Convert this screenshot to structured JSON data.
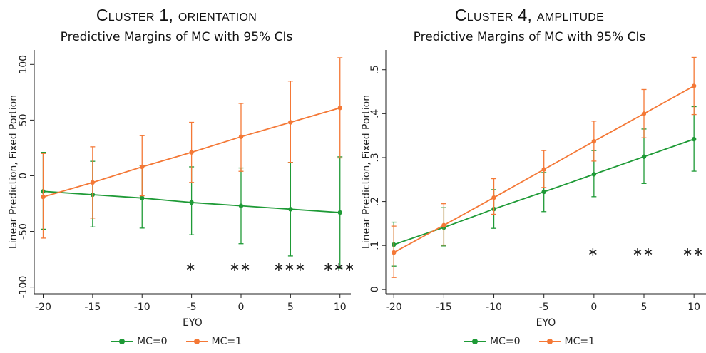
{
  "chart_data": [
    {
      "type": "line",
      "title": "Cluster 1, orientation",
      "subtitle": "Predictive Margins of MC with 95% CIs",
      "xlabel": "EYO",
      "ylabel": "Linear Prediction, Fixed Portion",
      "x": [
        -20,
        -15,
        -10,
        -5,
        0,
        5,
        10
      ],
      "xlim": [
        -20.9,
        11.1
      ],
      "ylim": [
        -106,
        113
      ],
      "xticks": [
        "-20",
        "-15",
        "-10",
        "-5",
        "0",
        "5",
        "10"
      ],
      "yticks": [
        {
          "value": -100,
          "label": "-100"
        },
        {
          "value": -50,
          "label": "-50"
        },
        {
          "value": 0,
          "label": "0"
        },
        {
          "value": 50,
          "label": "50"
        },
        {
          "value": 100,
          "label": "100"
        }
      ],
      "grid": false,
      "legend_position": "bottom",
      "series": [
        {
          "name": "MC=0",
          "color": "#1e9a36",
          "values": [
            -14,
            -17,
            -20,
            -24,
            -27,
            -30,
            -33
          ],
          "lower": [
            -48,
            -46,
            -47,
            -53,
            -61,
            -72,
            -83
          ],
          "upper": [
            21,
            13,
            9,
            8,
            7,
            12,
            17
          ]
        },
        {
          "name": "MC=1",
          "color": "#f47836",
          "values": [
            -19,
            -6,
            8,
            21,
            35,
            48,
            61
          ],
          "lower": [
            -56,
            -38,
            -18,
            -6,
            4,
            12,
            16
          ],
          "upper": [
            20,
            26,
            36,
            48,
            65,
            85,
            106
          ]
        }
      ],
      "annotations": [
        {
          "x": -5,
          "text": "*"
        },
        {
          "x": 0,
          "text": "**"
        },
        {
          "x": 5,
          "text": "***"
        },
        {
          "x": 10,
          "text": "***"
        }
      ],
      "annotation_y": -85
    },
    {
      "type": "line",
      "title": "Cluster 4, amplitude",
      "subtitle": "Predictive Margins of MC with 95% CIs",
      "xlabel": "EYO",
      "ylabel": "Linear Prediction, Fixed Portion",
      "x": [
        -20,
        -15,
        -10,
        -5,
        0,
        5,
        10
      ],
      "xlim": [
        -20.8,
        11.2
      ],
      "ylim": [
        -0.01,
        0.545
      ],
      "xticks": [
        "-20",
        "-15",
        "-10",
        "-5",
        "0",
        "5",
        "10"
      ],
      "yticks": [
        {
          "value": 0,
          "label": "0"
        },
        {
          "value": 0.1,
          "label": ".1"
        },
        {
          "value": 0.2,
          "label": ".2"
        },
        {
          "value": 0.3,
          "label": ".3"
        },
        {
          "value": 0.4,
          "label": ".4"
        },
        {
          "value": 0.5,
          "label": ".5"
        }
      ],
      "grid": false,
      "legend_position": "bottom",
      "series": [
        {
          "name": "MC=0",
          "color": "#1e9a36",
          "values": [
            0.102,
            0.141,
            0.183,
            0.222,
            0.262,
            0.302,
            0.342
          ],
          "lower": [
            0.053,
            0.099,
            0.139,
            0.177,
            0.211,
            0.241,
            0.269
          ],
          "upper": [
            0.153,
            0.186,
            0.227,
            0.266,
            0.316,
            0.365,
            0.416
          ]
        },
        {
          "name": "MC=1",
          "color": "#f47836",
          "values": [
            0.084,
            0.146,
            0.209,
            0.273,
            0.337,
            0.4,
            0.463
          ],
          "lower": [
            0.027,
            0.101,
            0.171,
            0.232,
            0.292,
            0.345,
            0.398
          ],
          "upper": [
            0.144,
            0.195,
            0.252,
            0.316,
            0.383,
            0.455,
            0.528
          ]
        }
      ],
      "annotations": [
        {
          "x": 0,
          "text": "*"
        },
        {
          "x": 5,
          "text": "**"
        },
        {
          "x": 10,
          "text": "**"
        }
      ],
      "annotation_y": 0.078
    }
  ]
}
